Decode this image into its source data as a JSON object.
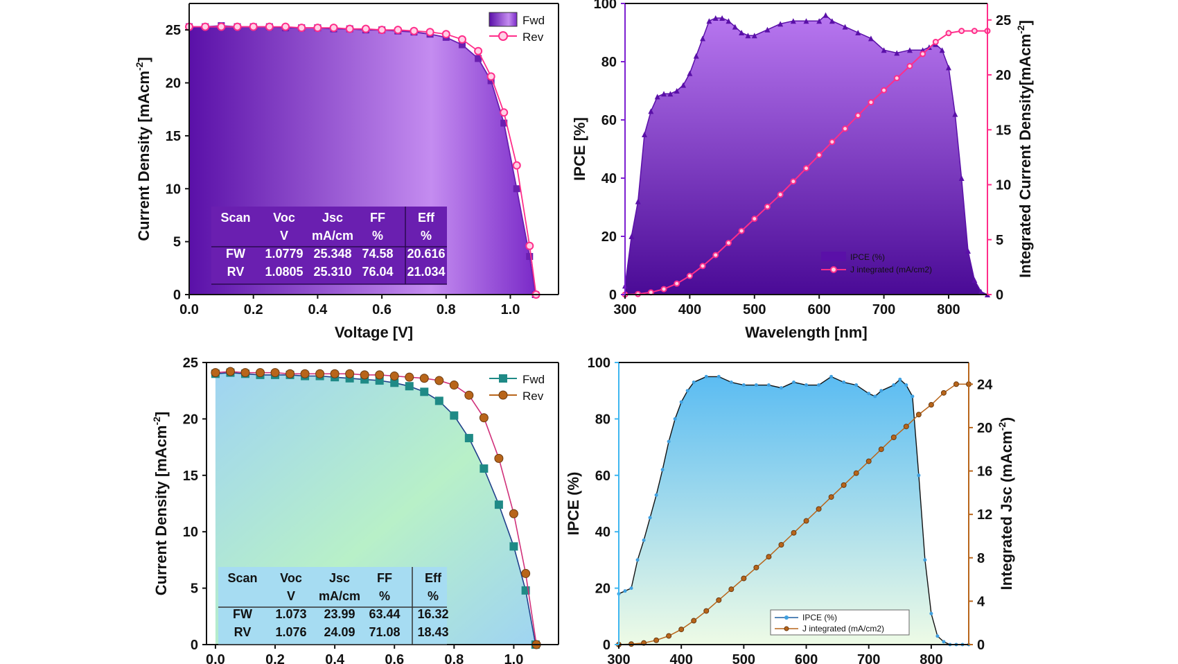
{
  "chart_data": [
    {
      "id": "jv1",
      "type": "line",
      "xlabel": "Voltage [V]",
      "ylabel": "Current Density [mAcm",
      "ylabel_sup": "-2",
      "ylabel_end": "]",
      "xlim": [
        0,
        1.15
      ],
      "ylim": [
        0,
        27.5
      ],
      "xticks": [
        0.0,
        0.2,
        0.4,
        0.6,
        0.8,
        1.0
      ],
      "xtick_labels": [
        "0.0",
        "0.2",
        "0.4",
        "0.6",
        "0.8",
        "1.0"
      ],
      "yticks": [
        0,
        5,
        10,
        15,
        20,
        25
      ],
      "ytick_labels": [
        "0",
        "5",
        "10",
        "15",
        "20",
        "25"
      ],
      "legend": [
        "Fwd",
        "Rev"
      ],
      "legend_position": "top-right",
      "colors": {
        "fwd": "#6a1fb0",
        "rev": "#ff2d8a",
        "fill_dark": "#5a10a8",
        "fill_light": "#c48cf0"
      },
      "series": [
        {
          "name": "Fwd",
          "x": [
            0.0,
            0.05,
            0.1,
            0.15,
            0.2,
            0.25,
            0.3,
            0.35,
            0.4,
            0.45,
            0.5,
            0.55,
            0.6,
            0.65,
            0.7,
            0.75,
            0.8,
            0.85,
            0.9,
            0.94,
            0.98,
            1.02,
            1.06,
            1.078
          ],
          "y": [
            25.3,
            25.3,
            25.4,
            25.3,
            25.3,
            25.3,
            25.2,
            25.2,
            25.2,
            25.1,
            25.1,
            25.0,
            25.0,
            24.9,
            24.8,
            24.6,
            24.3,
            23.6,
            22.3,
            20.2,
            16.2,
            10.0,
            3.6,
            0
          ]
        },
        {
          "name": "Rev",
          "x": [
            0.0,
            0.05,
            0.1,
            0.15,
            0.2,
            0.25,
            0.3,
            0.35,
            0.4,
            0.45,
            0.5,
            0.55,
            0.6,
            0.65,
            0.7,
            0.75,
            0.8,
            0.85,
            0.9,
            0.94,
            0.98,
            1.02,
            1.06,
            1.08
          ],
          "y": [
            25.3,
            25.3,
            25.3,
            25.3,
            25.3,
            25.3,
            25.3,
            25.2,
            25.2,
            25.2,
            25.1,
            25.1,
            25.0,
            25.0,
            24.9,
            24.8,
            24.6,
            24.1,
            23.0,
            20.6,
            17.2,
            12.2,
            4.6,
            0
          ]
        }
      ],
      "table": {
        "header1": [
          "Scan",
          "Voc",
          "Jsc",
          "FF",
          "Eff"
        ],
        "header2": [
          "",
          "V",
          "mA/cm",
          "%",
          "%"
        ],
        "rows": [
          [
            "FW",
            "1.0779",
            "25.348",
            "74.58",
            "20.616"
          ],
          [
            "RV",
            "1.0805",
            "25.310",
            "76.04",
            "21.034"
          ]
        ]
      }
    },
    {
      "id": "ipce1",
      "type": "area",
      "xlabel": "Wavelength [nm]",
      "ylabel": "IPCE [%]",
      "y2label": "Integrated Current Density[mAcm",
      "y2label_sup": "-2",
      "y2label_end": "]",
      "xlim": [
        300,
        860
      ],
      "ylim": [
        0,
        100
      ],
      "y2lim": [
        0,
        26.5
      ],
      "xticks": [
        300,
        400,
        500,
        600,
        700,
        800
      ],
      "xtick_labels": [
        "300",
        "400",
        "500",
        "600",
        "700",
        "800"
      ],
      "yticks": [
        0,
        20,
        40,
        60,
        80,
        100
      ],
      "ytick_labels": [
        "0",
        "20",
        "40",
        "60",
        "80",
        "100"
      ],
      "y2ticks": [
        0,
        5,
        10,
        15,
        20,
        25
      ],
      "y2tick_labels": [
        "0",
        "5",
        "10",
        "15",
        "20",
        "25"
      ],
      "legend": [
        "IPCE (%)",
        "J integrated (mA/cm2)"
      ],
      "legend_position": "bottom-right",
      "colors": {
        "ipce": "#5a10a8",
        "jint": "#ff2d8a",
        "axis_left": "#7b1fd0",
        "axis_right": "#ff2d8a",
        "fill_light": "#b877f0"
      },
      "series": [
        {
          "name": "IPCE (%)",
          "x": [
            300,
            310,
            320,
            330,
            340,
            350,
            360,
            370,
            380,
            390,
            400,
            410,
            420,
            430,
            440,
            450,
            460,
            470,
            480,
            490,
            500,
            520,
            540,
            560,
            580,
            600,
            610,
            620,
            640,
            660,
            680,
            700,
            720,
            740,
            760,
            770,
            780,
            790,
            800,
            810,
            820,
            830,
            840,
            850,
            860
          ],
          "y": [
            3,
            20,
            32,
            55,
            63,
            68,
            69,
            69,
            70,
            72,
            76,
            82,
            88,
            94,
            95,
            95,
            94,
            92,
            90,
            89,
            89,
            91,
            93,
            94,
            94,
            94,
            96,
            94,
            92,
            90,
            88,
            84,
            83,
            84,
            84,
            85,
            86,
            84,
            78,
            62,
            40,
            15,
            5,
            1,
            0
          ]
        },
        {
          "name": "J integrated (mA/cm2)",
          "x": [
            300,
            320,
            340,
            360,
            380,
            400,
            420,
            440,
            460,
            480,
            500,
            520,
            540,
            560,
            580,
            600,
            620,
            640,
            660,
            680,
            700,
            720,
            740,
            760,
            780,
            800,
            820,
            840,
            860
          ],
          "y": [
            0,
            0.05,
            0.2,
            0.5,
            1.0,
            1.7,
            2.6,
            3.6,
            4.7,
            5.8,
            6.9,
            8.0,
            9.1,
            10.3,
            11.5,
            12.7,
            13.9,
            15.1,
            16.3,
            17.5,
            18.6,
            19.7,
            20.8,
            21.9,
            23.0,
            23.8,
            24.0,
            24.0,
            24.0
          ]
        }
      ]
    },
    {
      "id": "jv2",
      "type": "line",
      "xlabel": "",
      "ylabel": "Current Density [mAcm",
      "ylabel_sup": "-2",
      "ylabel_end": "]",
      "xlim": [
        -0.03,
        1.15
      ],
      "ylim": [
        0,
        25
      ],
      "xticks": [
        0.0,
        0.2,
        0.4,
        0.6,
        0.8,
        1.0
      ],
      "xtick_labels": [
        "0.0",
        "0.2",
        "0.4",
        "0.6",
        "0.8",
        "1.0"
      ],
      "yticks": [
        0,
        5,
        10,
        15,
        20,
        25
      ],
      "ytick_labels": [
        "0",
        "5",
        "10",
        "15",
        "20",
        "25"
      ],
      "legend": [
        "Fwd",
        "Rev"
      ],
      "legend_position": "top-right",
      "colors": {
        "fwd": "#1f8a86",
        "rev": "#b8651a",
        "fill_a": "#9fd4f2",
        "fill_b": "#b8f0c8"
      },
      "series": [
        {
          "name": "Fwd",
          "x": [
            0.0,
            0.05,
            0.1,
            0.15,
            0.2,
            0.25,
            0.3,
            0.35,
            0.4,
            0.45,
            0.5,
            0.55,
            0.6,
            0.65,
            0.7,
            0.75,
            0.8,
            0.85,
            0.9,
            0.95,
            1.0,
            1.04,
            1.073
          ],
          "y": [
            24.0,
            24.1,
            24.0,
            23.9,
            23.9,
            23.9,
            23.8,
            23.8,
            23.7,
            23.6,
            23.5,
            23.4,
            23.2,
            22.9,
            22.4,
            21.6,
            20.3,
            18.3,
            15.6,
            12.4,
            8.7,
            4.8,
            0
          ]
        },
        {
          "name": "Rev",
          "x": [
            0.0,
            0.05,
            0.1,
            0.15,
            0.2,
            0.25,
            0.3,
            0.35,
            0.4,
            0.45,
            0.5,
            0.55,
            0.6,
            0.65,
            0.7,
            0.75,
            0.8,
            0.85,
            0.9,
            0.95,
            1.0,
            1.04,
            1.076
          ],
          "y": [
            24.1,
            24.2,
            24.1,
            24.1,
            24.1,
            24.0,
            24.0,
            24.0,
            24.0,
            24.0,
            23.9,
            23.9,
            23.8,
            23.7,
            23.6,
            23.4,
            23.0,
            22.1,
            20.1,
            16.5,
            11.6,
            6.3,
            0
          ]
        }
      ],
      "table": {
        "header1": [
          "Scan",
          "Voc",
          "Jsc",
          "FF",
          "Eff"
        ],
        "header2": [
          "",
          "V",
          "mA/cm",
          "%",
          "%"
        ],
        "rows": [
          [
            "FW",
            "1.073",
            "23.99",
            "63.44",
            "16.32"
          ],
          [
            "RV",
            "1.076",
            "24.09",
            "71.08",
            "18.43"
          ]
        ]
      }
    },
    {
      "id": "ipce2",
      "type": "area",
      "xlabel": "",
      "ylabel": "IPCE (%)",
      "y2label": "Integrated Jsc (mAcm",
      "y2label_sup": "-2",
      "y2label_end": ")",
      "xlim": [
        300,
        860
      ],
      "ylim": [
        0,
        100
      ],
      "y2lim": [
        0,
        26
      ],
      "xticks": [
        300,
        400,
        500,
        600,
        700,
        800
      ],
      "xtick_labels": [
        "300",
        "400",
        "500",
        "600",
        "700",
        "800"
      ],
      "yticks": [
        0,
        20,
        40,
        60,
        80,
        100
      ],
      "ytick_labels": [
        "0",
        "20",
        "40",
        "60",
        "80",
        "100"
      ],
      "y2ticks": [
        0,
        4,
        8,
        12,
        16,
        20,
        24
      ],
      "y2tick_labels": [
        "0",
        "4",
        "8",
        "12",
        "16",
        "20",
        "24"
      ],
      "legend": [
        "IPCE (%)",
        "J integrated (mA/cm2)"
      ],
      "legend_position": "bottom-right",
      "colors": {
        "ipce": "#1f5fa0",
        "jint": "#b8651a",
        "axis_left": "#3fb6f0",
        "axis_right": "#b8651a",
        "fill_a": "#5bbcf2",
        "fill_b": "#eefbe6"
      },
      "series": [
        {
          "name": "IPCE (%)",
          "x": [
            300,
            310,
            320,
            330,
            340,
            350,
            360,
            370,
            380,
            390,
            400,
            410,
            420,
            440,
            460,
            480,
            500,
            520,
            540,
            560,
            580,
            600,
            620,
            640,
            660,
            680,
            700,
            710,
            720,
            740,
            750,
            760,
            770,
            780,
            790,
            800,
            810,
            820,
            830,
            840,
            850,
            860
          ],
          "y": [
            18,
            19,
            20,
            30,
            37,
            45,
            53,
            62,
            72,
            80,
            86,
            90,
            93,
            95,
            95,
            93,
            92,
            92,
            92,
            91,
            93,
            92,
            92,
            95,
            93,
            92,
            89,
            88,
            90,
            92,
            94,
            92,
            88,
            60,
            30,
            11,
            3,
            1,
            0,
            0,
            0,
            0
          ]
        },
        {
          "name": "J integrated (mA/cm2)",
          "x": [
            300,
            320,
            340,
            360,
            380,
            400,
            420,
            440,
            460,
            480,
            500,
            520,
            540,
            560,
            580,
            600,
            620,
            640,
            660,
            680,
            700,
            720,
            740,
            760,
            780,
            800,
            820,
            840,
            860
          ],
          "y": [
            0,
            0.05,
            0.15,
            0.4,
            0.8,
            1.4,
            2.2,
            3.1,
            4.1,
            5.1,
            6.1,
            7.1,
            8.1,
            9.2,
            10.3,
            11.4,
            12.5,
            13.6,
            14.7,
            15.8,
            16.9,
            18.0,
            19.1,
            20.1,
            21.2,
            22.1,
            23.2,
            24.0,
            24.0
          ]
        }
      ]
    }
  ]
}
